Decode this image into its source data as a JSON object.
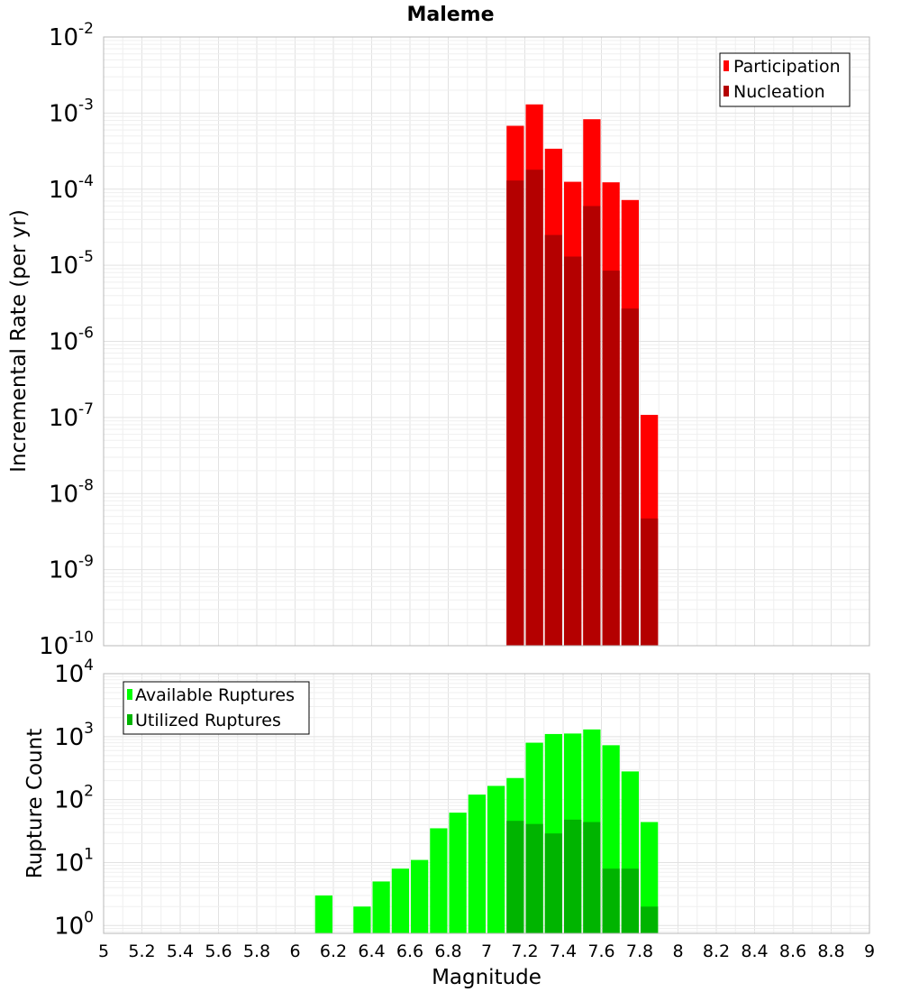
{
  "chart_data": [
    {
      "type": "bar",
      "title": "Maleme",
      "xlabel": "Magnitude",
      "ylabel": "Incremental Rate (per yr)",
      "xlim": [
        5,
        9
      ],
      "ylim": [
        1e-10,
        0.01
      ],
      "yscale": "log",
      "y_tick_exponents": [
        -10,
        -9,
        -8,
        -7,
        -6,
        -5,
        -4,
        -3,
        -2
      ],
      "bin_width": 0.1,
      "grid": true,
      "legend_position": "top-right",
      "categories": [
        7.15,
        7.25,
        7.35,
        7.45,
        7.55,
        7.65,
        7.75,
        7.85
      ],
      "series": [
        {
          "name": "Participation",
          "color": "#ff0000",
          "values": [
            0.00068,
            0.0013,
            0.00034,
            0.000125,
            0.00083,
            0.000123,
            7.2e-05,
            1.08e-07
          ]
        },
        {
          "name": "Nucleation",
          "color": "#b40000",
          "values": [
            0.00013,
            0.00018,
            2.5e-05,
            1.3e-05,
            6e-05,
            8.5e-06,
            2.7e-06,
            4.7e-09
          ]
        }
      ]
    },
    {
      "type": "bar",
      "xlabel": "Magnitude",
      "ylabel": "Rupture Count",
      "xlim": [
        5,
        9
      ],
      "ylim": [
        0.75,
        10000
      ],
      "yscale": "log",
      "y_tick_exponents": [
        0,
        1,
        2,
        3,
        4
      ],
      "x_ticks": [
        "5",
        "5.2",
        "5.4",
        "5.6",
        "5.8",
        "6",
        "6.2",
        "6.4",
        "6.6",
        "6.8",
        "7",
        "7.2",
        "7.4",
        "7.6",
        "7.8",
        "8",
        "8.2",
        "8.4",
        "8.6",
        "8.8",
        "9"
      ],
      "bin_width": 0.1,
      "grid": true,
      "legend_position": "top-left",
      "categories": [
        6.15,
        6.25,
        6.35,
        6.45,
        6.55,
        6.65,
        6.75,
        6.85,
        6.95,
        7.05,
        7.15,
        7.25,
        7.35,
        7.45,
        7.55,
        7.65,
        7.75,
        7.85
      ],
      "series": [
        {
          "name": "Available Ruptures",
          "color": "#00ff00",
          "values": [
            3,
            0,
            2,
            5,
            8,
            11,
            35,
            62,
            120,
            165,
            220,
            800,
            1100,
            1120,
            1300,
            730,
            280,
            44
          ]
        },
        {
          "name": "Utilized Ruptures",
          "color": "#00b400",
          "values": [
            0,
            0,
            0,
            0,
            0,
            0,
            0,
            0,
            0,
            0,
            46,
            41,
            29,
            48,
            44,
            8,
            8,
            2
          ]
        }
      ]
    }
  ],
  "decade_base": "10"
}
